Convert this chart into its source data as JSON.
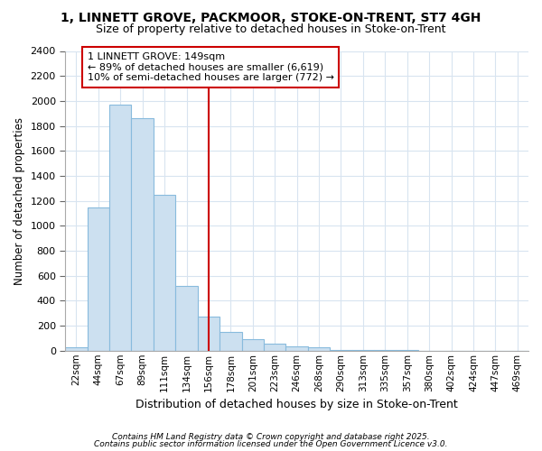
{
  "title": "1, LINNETT GROVE, PACKMOOR, STOKE-ON-TRENT, ST7 4GH",
  "subtitle": "Size of property relative to detached houses in Stoke-on-Trent",
  "xlabel": "Distribution of detached houses by size in Stoke-on-Trent",
  "ylabel": "Number of detached properties",
  "bar_labels": [
    "22sqm",
    "44sqm",
    "67sqm",
    "89sqm",
    "111sqm",
    "134sqm",
    "156sqm",
    "178sqm",
    "201sqm",
    "223sqm",
    "246sqm",
    "268sqm",
    "290sqm",
    "313sqm",
    "335sqm",
    "357sqm",
    "380sqm",
    "402sqm",
    "424sqm",
    "447sqm",
    "469sqm"
  ],
  "bar_values": [
    25,
    1150,
    1970,
    1860,
    1250,
    520,
    270,
    150,
    90,
    55,
    35,
    25,
    5,
    3,
    2,
    2,
    1,
    1,
    1,
    1,
    1
  ],
  "bar_color": "#cce0f0",
  "bar_edge_color": "#88bbdd",
  "vline_index": 6,
  "vline_color": "#cc0000",
  "ylim": [
    0,
    2400
  ],
  "yticks": [
    0,
    200,
    400,
    600,
    800,
    1000,
    1200,
    1400,
    1600,
    1800,
    2000,
    2200,
    2400
  ],
  "annotation_title": "1 LINNETT GROVE: 149sqm",
  "annotation_line1": "← 89% of detached houses are smaller (6,619)",
  "annotation_line2": "10% of semi-detached houses are larger (772) →",
  "vline_color2": "#cc0000",
  "grid_color": "#d8e4f0",
  "bg_color": "#ffffff",
  "plot_bg_color": "#ffffff",
  "footnote1": "Contains HM Land Registry data © Crown copyright and database right 2025.",
  "footnote2": "Contains public sector information licensed under the Open Government Licence v3.0.",
  "title_fontsize": 10,
  "subtitle_fontsize": 9
}
